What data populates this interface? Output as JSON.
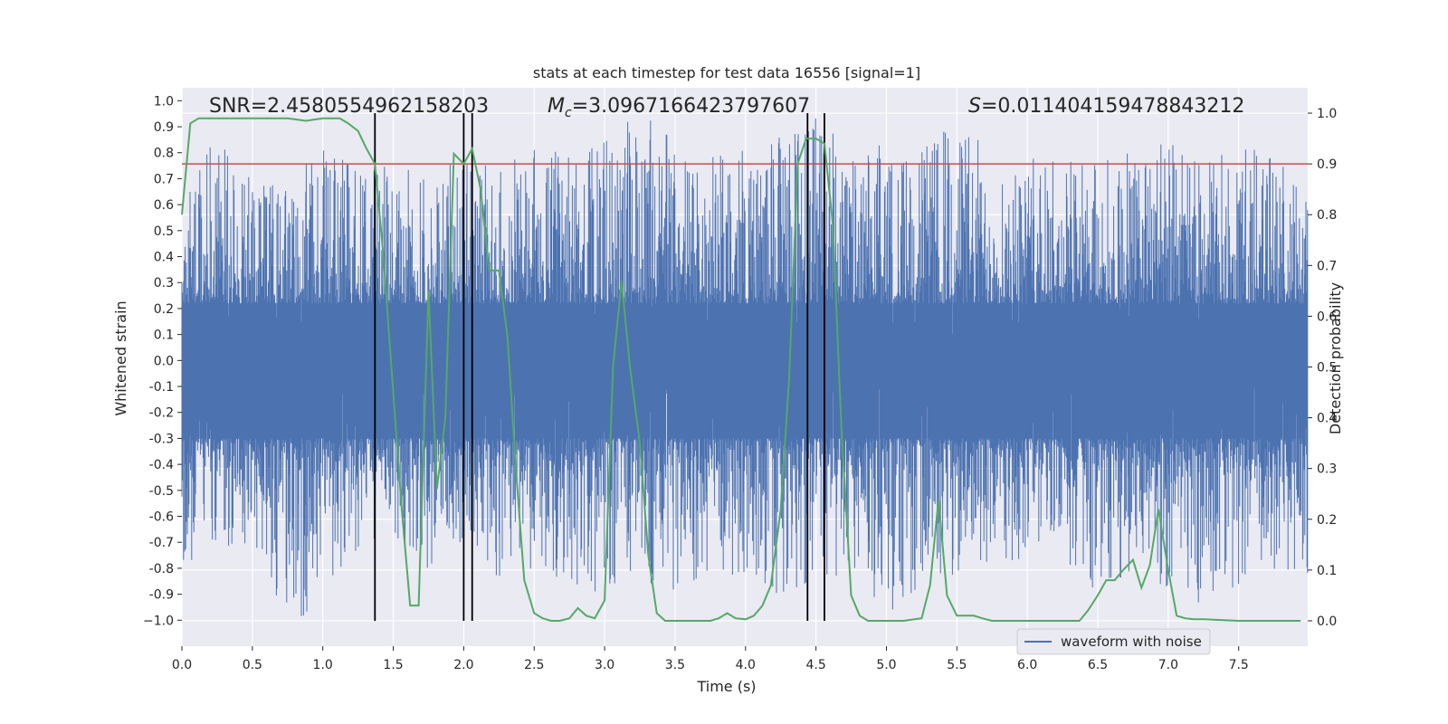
{
  "chart_data": {
    "type": "line",
    "title": "stats at each timestep for test data 16556 [signal=1]",
    "xlabel": "Time (s)",
    "ylabel": "Whitened strain",
    "y2label": "Detection probability",
    "xlim": [
      0.0,
      7.99
    ],
    "ylim": [
      -1.1,
      1.05
    ],
    "y2lim": [
      -0.05,
      1.05
    ],
    "x_ticks": [
      "0.0",
      "0.5",
      "1.0",
      "1.5",
      "2.0",
      "2.5",
      "3.0",
      "3.5",
      "4.0",
      "4.5",
      "5.0",
      "5.5",
      "6.0",
      "6.5",
      "7.0",
      "7.5"
    ],
    "y_ticks": [
      "1.0",
      "0.9",
      "0.8",
      "0.7",
      "0.6",
      "0.5",
      "0.4",
      "0.3",
      "0.2",
      "0.1",
      "0.0",
      "-0.1",
      "-0.2",
      "-0.3",
      "-0.4",
      "-0.5",
      "-0.6",
      "-0.7",
      "-0.8",
      "-0.9",
      "−1.0"
    ],
    "y2_ticks": [
      "1.0",
      "0.9",
      "0.8",
      "0.7",
      "0.6",
      "0.5",
      "0.4",
      "0.3",
      "0.2",
      "0.1",
      "0.0"
    ],
    "annotations": {
      "snr": "SNR=2.4580554962158203",
      "mc_symbol": "M",
      "mc_sub": "c",
      "mc_value": "=3.0967166423797607",
      "s_symbol": "S",
      "s_value": "=0.011404159478843212"
    },
    "legend": {
      "label": "waveform with noise",
      "position": "lower-right"
    },
    "colors": {
      "waveform": "#4c72b0",
      "probability": "#55a868",
      "threshold": "#c44e52",
      "markers": "#000000",
      "plot_bg": "#eaeaf2",
      "grid": "#ffffff"
    },
    "threshold_probability": 0.9,
    "vertical_markers_s": [
      1.37,
      2.0,
      2.06,
      4.44,
      4.56
    ],
    "waveform_envelope_s": {
      "note_free": true,
      "t": [
        0.0,
        0.25,
        0.5,
        0.75,
        1.0,
        1.25,
        1.5,
        1.75,
        2.0,
        2.25,
        2.5,
        2.75,
        3.0,
        3.25,
        3.5,
        3.75,
        4.0,
        4.25,
        4.5,
        4.75,
        5.0,
        5.25,
        5.5,
        5.75,
        6.0,
        6.25,
        6.5,
        6.75,
        7.0,
        7.25,
        7.5,
        7.75,
        7.99
      ],
      "upper": [
        0.58,
        0.88,
        0.72,
        0.68,
        0.84,
        0.72,
        0.8,
        0.68,
        0.8,
        0.72,
        0.84,
        0.78,
        0.84,
        0.96,
        0.84,
        0.78,
        0.82,
        0.86,
        0.96,
        0.78,
        0.84,
        0.8,
        0.96,
        0.8,
        0.78,
        0.76,
        0.78,
        0.8,
        0.84,
        0.76,
        0.82,
        0.8,
        0.6
      ],
      "lower": [
        -0.8,
        -0.72,
        -0.7,
        -1.0,
        -0.96,
        -0.74,
        -0.72,
        -0.8,
        -0.72,
        -0.86,
        -0.8,
        -0.86,
        -0.9,
        -0.84,
        -0.9,
        -0.8,
        -0.86,
        -0.9,
        -0.84,
        -0.82,
        -0.98,
        -0.86,
        -0.82,
        -0.78,
        -0.76,
        -0.8,
        -0.9,
        -0.8,
        -0.88,
        -0.94,
        -0.86,
        -0.82,
        -0.84
      ]
    },
    "series": [
      {
        "name": "detection probability",
        "x": [
          0.0,
          0.06,
          0.12,
          0.25,
          0.5,
          0.75,
          0.88,
          1.0,
          1.12,
          1.18,
          1.25,
          1.31,
          1.37,
          1.43,
          1.5,
          1.56,
          1.62,
          1.68,
          1.75,
          1.81,
          1.87,
          1.93,
          2.0,
          2.06,
          2.12,
          2.18,
          2.25,
          2.31,
          2.37,
          2.43,
          2.5,
          2.56,
          2.62,
          2.68,
          2.75,
          2.81,
          2.87,
          2.93,
          3.0,
          3.06,
          3.12,
          3.18,
          3.25,
          3.31,
          3.37,
          3.43,
          3.5,
          3.62,
          3.75,
          3.81,
          3.87,
          3.93,
          4.0,
          4.06,
          4.12,
          4.18,
          4.25,
          4.31,
          4.37,
          4.43,
          4.5,
          4.56,
          4.62,
          4.68,
          4.75,
          4.81,
          4.87,
          5.0,
          5.12,
          5.25,
          5.31,
          5.37,
          5.43,
          5.5,
          5.56,
          5.62,
          5.68,
          5.75,
          6.0,
          6.25,
          6.37,
          6.43,
          6.5,
          6.56,
          6.62,
          6.68,
          6.75,
          6.81,
          6.87,
          6.93,
          7.0,
          7.06,
          7.12,
          7.18,
          7.25,
          7.5,
          7.75,
          7.94
        ],
        "y": [
          0.8,
          0.98,
          0.99,
          0.99,
          0.99,
          0.99,
          0.985,
          0.99,
          0.99,
          0.98,
          0.965,
          0.93,
          0.9,
          0.72,
          0.45,
          0.22,
          0.03,
          0.03,
          0.65,
          0.26,
          0.4,
          0.92,
          0.9,
          0.93,
          0.85,
          0.69,
          0.69,
          0.56,
          0.3,
          0.08,
          0.015,
          0.005,
          0.0,
          0.0,
          0.005,
          0.025,
          0.01,
          0.005,
          0.04,
          0.5,
          0.67,
          0.5,
          0.35,
          0.13,
          0.015,
          0.0,
          0.0,
          0.0,
          0.0,
          0.005,
          0.015,
          0.005,
          0.003,
          0.01,
          0.03,
          0.07,
          0.22,
          0.48,
          0.9,
          0.95,
          0.95,
          0.94,
          0.78,
          0.38,
          0.05,
          0.01,
          0.0,
          0.0,
          0.0,
          0.005,
          0.07,
          0.24,
          0.05,
          0.01,
          0.01,
          0.01,
          0.005,
          0.0,
          0.0,
          0.0,
          0.0,
          0.02,
          0.05,
          0.08,
          0.08,
          0.1,
          0.12,
          0.065,
          0.11,
          0.22,
          0.1,
          0.01,
          0.005,
          0.003,
          0.003,
          0.0,
          0.0,
          0.0
        ]
      }
    ]
  }
}
